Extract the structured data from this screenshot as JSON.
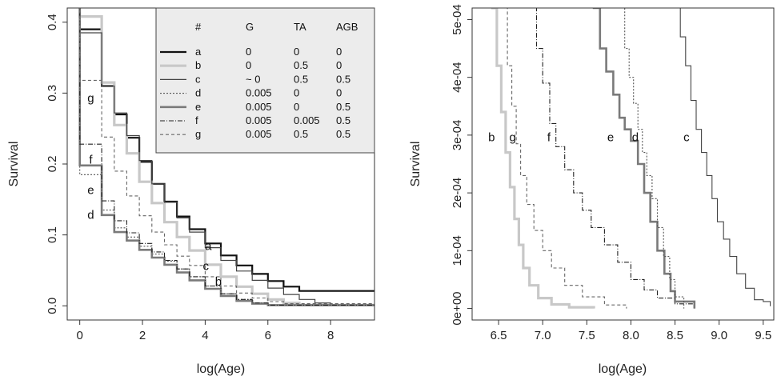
{
  "chart_data": [
    {
      "type": "line",
      "panel": "left",
      "xlabel": "log(Age)",
      "ylabel": "Survival",
      "xlim": [
        -0.4,
        9.4
      ],
      "ylim": [
        -0.02,
        0.42
      ],
      "x_ticks": [
        "0",
        "2",
        "4",
        "6",
        "8"
      ],
      "y_ticks": [
        "0.0",
        "0.1",
        "0.2",
        "0.3",
        "0.4"
      ],
      "legend": {
        "placement": "top-right",
        "headers": [
          "#",
          "G",
          "TA",
          "AGB"
        ],
        "rows": [
          {
            "id": "a",
            "G": "0",
            "TA": "0",
            "AGB": "0"
          },
          {
            "id": "b",
            "G": "0",
            "TA": "0.5",
            "AGB": "0"
          },
          {
            "id": "c",
            "G": "~ 0",
            "TA": "0.5",
            "AGB": "0.5"
          },
          {
            "id": "d",
            "G": "0.005",
            "TA": "0",
            "AGB": "0"
          },
          {
            "id": "e",
            "G": "0.005",
            "TA": "0",
            "AGB": "0.5"
          },
          {
            "id": "f",
            "G": "0.005",
            "TA": "0.005",
            "AGB": "0.5"
          },
          {
            "id": "g",
            "G": "0.005",
            "TA": "0.5",
            "AGB": "0.5"
          }
        ]
      },
      "series": [
        {
          "name": "a",
          "color": "#111111",
          "width": 2.2,
          "dash": "",
          "x": [
            0,
            0.7,
            1.1,
            1.5,
            1.9,
            2.3,
            2.7,
            3.1,
            3.5,
            4.0,
            4.5,
            5.0,
            5.5,
            6.0,
            6.5,
            7.0,
            9.4
          ],
          "y": [
            0.39,
            0.31,
            0.27,
            0.237,
            0.203,
            0.172,
            0.147,
            0.126,
            0.108,
            0.088,
            0.071,
            0.057,
            0.045,
            0.035,
            0.027,
            0.021,
            0.02
          ]
        },
        {
          "name": "b",
          "color": "#c8c8c8",
          "width": 3.2,
          "dash": "",
          "x": [
            0,
            0.7,
            1.1,
            1.5,
            1.9,
            2.3,
            2.7,
            3.1,
            3.5,
            4.0,
            4.5,
            5.0,
            5.5,
            6.0,
            6.5,
            7.0,
            9.4
          ],
          "y": [
            0.408,
            0.315,
            0.255,
            0.215,
            0.175,
            0.145,
            0.118,
            0.097,
            0.078,
            0.058,
            0.041,
            0.027,
            0.017,
            0.009,
            0.004,
            0.001,
            0.0
          ]
        },
        {
          "name": "c",
          "color": "#444444",
          "width": 1.2,
          "dash": "",
          "x": [
            0,
            0.7,
            1.1,
            1.5,
            1.9,
            2.3,
            2.7,
            3.1,
            3.5,
            4.0,
            4.5,
            5.0,
            5.5,
            6.0,
            6.5,
            7.0,
            7.5,
            8.0,
            9.4
          ],
          "y": [
            0.385,
            0.31,
            0.272,
            0.24,
            0.205,
            0.172,
            0.146,
            0.124,
            0.104,
            0.082,
            0.064,
            0.049,
            0.036,
            0.025,
            0.016,
            0.009,
            0.004,
            0.001,
            0.0
          ]
        },
        {
          "name": "d",
          "color": "#555555",
          "width": 1.1,
          "dash": "2,2",
          "x": [
            0,
            0.7,
            1.1,
            1.5,
            1.9,
            2.3,
            2.7,
            3.1,
            3.5,
            4.0,
            4.5,
            5.0,
            5.5,
            6.0,
            9.4
          ],
          "y": [
            0.185,
            0.135,
            0.11,
            0.097,
            0.084,
            0.073,
            0.063,
            0.052,
            0.041,
            0.028,
            0.017,
            0.009,
            0.004,
            0.001,
            0.0
          ]
        },
        {
          "name": "e",
          "color": "#7a7a7a",
          "width": 2.6,
          "dash": "",
          "x": [
            0,
            0.7,
            1.1,
            1.5,
            1.9,
            2.3,
            2.7,
            3.1,
            3.5,
            4.0,
            4.5,
            5.0,
            5.5,
            6.0,
            9.4
          ],
          "y": [
            0.198,
            0.128,
            0.104,
            0.092,
            0.079,
            0.068,
            0.058,
            0.047,
            0.036,
            0.024,
            0.014,
            0.007,
            0.003,
            0.001,
            0.0
          ]
        },
        {
          "name": "f",
          "color": "#222222",
          "width": 1.1,
          "dash": "6,2,1,2",
          "x": [
            0,
            0.7,
            1.1,
            1.5,
            1.9,
            2.3,
            2.7,
            3.1,
            3.5,
            4.0,
            4.5,
            5.0,
            5.5,
            6.0,
            9.4
          ],
          "y": [
            0.228,
            0.148,
            0.12,
            0.103,
            0.088,
            0.076,
            0.064,
            0.052,
            0.041,
            0.028,
            0.017,
            0.009,
            0.004,
            0.001,
            0.0
          ]
        },
        {
          "name": "g",
          "color": "#666666",
          "width": 1.1,
          "dash": "4,3",
          "x": [
            0,
            0.7,
            1.1,
            1.5,
            1.9,
            2.3,
            2.7,
            3.1,
            3.5,
            4.0,
            4.5,
            5.0,
            5.5,
            6.0,
            6.5,
            9.4
          ],
          "y": [
            0.318,
            0.238,
            0.19,
            0.155,
            0.127,
            0.104,
            0.086,
            0.07,
            0.057,
            0.041,
            0.028,
            0.018,
            0.011,
            0.006,
            0.003,
            0.0
          ]
        }
      ],
      "labels": [
        {
          "text": "a",
          "x": 4.1,
          "y": 0.083
        },
        {
          "text": "c",
          "x": 4.02,
          "y": 0.055
        },
        {
          "text": "b",
          "x": 4.42,
          "y": 0.033
        },
        {
          "text": "g",
          "x": 0.35,
          "y": 0.292
        },
        {
          "text": "f",
          "x": 0.35,
          "y": 0.205
        },
        {
          "text": "e",
          "x": 0.35,
          "y": 0.162
        },
        {
          "text": "d",
          "x": 0.35,
          "y": 0.127
        }
      ]
    },
    {
      "type": "line",
      "panel": "right",
      "xlabel": "log(Age)",
      "ylabel": "Survival",
      "xlim": [
        6.2,
        9.62
      ],
      "ylim": [
        -2e-05,
        0.00052
      ],
      "x_ticks": [
        "6.5",
        "7.0",
        "7.5",
        "8.0",
        "8.5",
        "9.0",
        "9.5"
      ],
      "y_ticks": [
        "0e+00",
        "1e-04",
        "2e-04",
        "3e-04",
        "4e-04",
        "5e-04"
      ],
      "series": [
        {
          "name": "b",
          "color": "#c8c8c8",
          "width": 3.2,
          "dash": "",
          "x": [
            6.43,
            6.48,
            6.53,
            6.58,
            6.63,
            6.68,
            6.73,
            6.78,
            6.85,
            6.95,
            7.1,
            7.3,
            7.58
          ],
          "y": [
            0.00052,
            0.00042,
            0.00034,
            0.00027,
            0.00021,
            0.000155,
            0.00011,
            7e-05,
            4e-05,
            1.8e-05,
            7e-06,
            2e-06,
            0.0
          ]
        },
        {
          "name": "g",
          "color": "#666666",
          "width": 1.1,
          "dash": "4,3",
          "x": [
            6.55,
            6.6,
            6.65,
            6.7,
            6.75,
            6.82,
            6.9,
            7.0,
            7.1,
            7.25,
            7.45,
            7.7,
            7.95
          ],
          "y": [
            0.00052,
            0.00042,
            0.00035,
            0.000285,
            0.00023,
            0.00018,
            0.000135,
            0.0001,
            7e-05,
            4e-05,
            2e-05,
            6e-06,
            0.0
          ]
        },
        {
          "name": "f",
          "color": "#222222",
          "width": 1.1,
          "dash": "6,2,1,2",
          "x": [
            6.87,
            6.93,
            7.0,
            7.08,
            7.15,
            7.25,
            7.35,
            7.45,
            7.55,
            7.7,
            7.85,
            8.0,
            8.15,
            8.3,
            8.5,
            8.72
          ],
          "y": [
            0.00052,
            0.00045,
            0.00039,
            0.00032,
            0.00028,
            0.00024,
            0.0002,
            0.00017,
            0.00014,
            0.00011,
            8e-05,
            5e-05,
            3.2e-05,
            1.8e-05,
            8e-06,
            0.0
          ]
        },
        {
          "name": "e",
          "color": "#7a7a7a",
          "width": 2.6,
          "dash": "",
          "x": [
            7.58,
            7.65,
            7.72,
            7.8,
            7.87,
            7.93,
            8.0,
            8.08,
            8.15,
            8.22,
            8.3,
            8.38,
            8.45,
            8.5,
            8.72
          ],
          "y": [
            0.00052,
            0.00045,
            0.00041,
            0.00037,
            0.00033,
            0.00031,
            0.00029,
            0.00025,
            0.0002,
            0.00015,
            0.0001,
            6e-05,
            3e-05,
            1.2e-05,
            0.0
          ]
        },
        {
          "name": "d",
          "color": "#555555",
          "width": 1.1,
          "dash": "2,2",
          "x": [
            7.88,
            7.93,
            7.98,
            8.03,
            8.08,
            8.13,
            8.18,
            8.24,
            8.3,
            8.37,
            8.44,
            8.5,
            8.6
          ],
          "y": [
            0.00052,
            0.00045,
            0.0004,
            0.000355,
            0.00031,
            0.00027,
            0.00023,
            0.00019,
            0.00014,
            9e-05,
            5e-05,
            2e-05,
            0.0
          ]
        },
        {
          "name": "c",
          "color": "#444444",
          "width": 1.1,
          "dash": "",
          "x": [
            8.5,
            8.56,
            8.62,
            8.68,
            8.74,
            8.8,
            8.86,
            8.92,
            8.98,
            9.05,
            9.12,
            9.2,
            9.3,
            9.4,
            9.5,
            9.58
          ],
          "y": [
            0.00052,
            0.00047,
            0.00042,
            0.00036,
            0.00031,
            0.00027,
            0.00023,
            0.00019,
            0.00015,
            0.00012,
            9e-05,
            6e-05,
            3.5e-05,
            1.5e-05,
            1.2e-05,
            4e-06
          ]
        }
      ],
      "labels": [
        {
          "text": "b",
          "x": 6.42,
          "y": 0.000295
        },
        {
          "text": "g",
          "x": 6.66,
          "y": 0.000295
        },
        {
          "text": "f",
          "x": 7.07,
          "y": 0.000295
        },
        {
          "text": "e",
          "x": 7.77,
          "y": 0.000295
        },
        {
          "text": "d",
          "x": 8.05,
          "y": 0.000295
        },
        {
          "text": "c",
          "x": 8.63,
          "y": 0.000295
        }
      ]
    }
  ]
}
